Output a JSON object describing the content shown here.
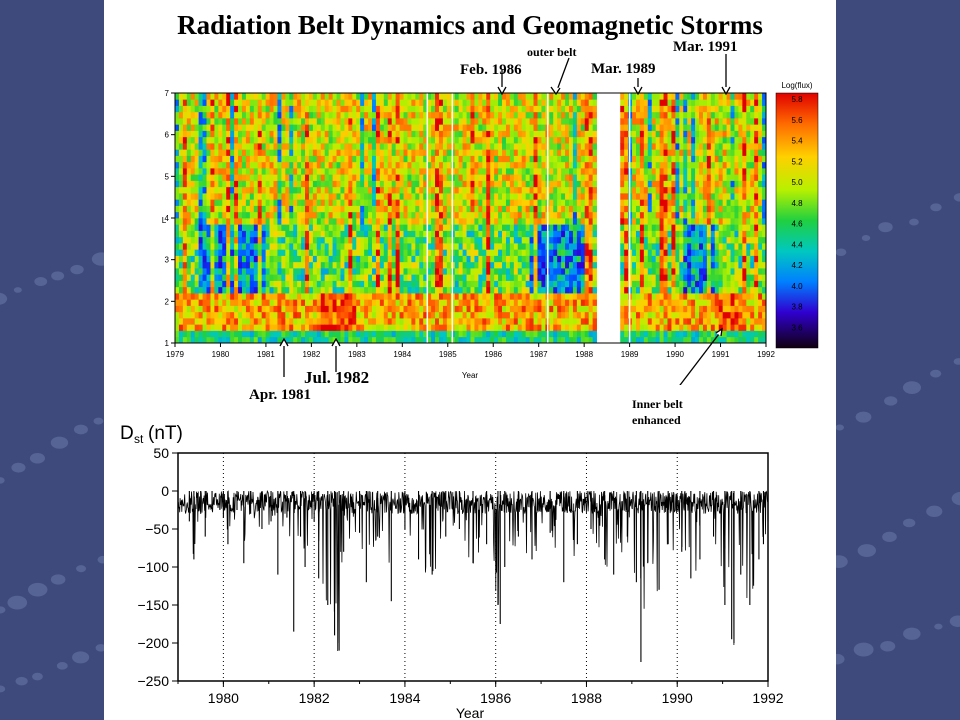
{
  "title": "Radiation Belt Dynamics and Geomagnetic Storms",
  "annotations": {
    "outer_belt": "outer belt",
    "feb_1986": "Feb. 1986",
    "mar_1989": "Mar. 1989",
    "mar_1991": "Mar. 1991",
    "apr_1981": "Apr. 1981",
    "jul_1982": "Jul. 1982",
    "inner_belt_line1": "Inner belt",
    "inner_belt_line2": "enhanced"
  },
  "colors": {
    "background": "#3f4a7c",
    "panel": "#ffffff"
  },
  "chart_data": [
    {
      "type": "heatmap",
      "title": "",
      "xlabel": "Year",
      "ylabel": "L",
      "xlim": [
        1979,
        1992
      ],
      "ylim": [
        1,
        7
      ],
      "x_ticks": [
        "1979",
        "1980",
        "1981",
        "1982",
        "1983",
        "1984",
        "1985",
        "1986",
        "1987",
        "1988",
        "1989",
        "1990",
        "1991",
        "1992"
      ],
      "y_ticks": [
        "1",
        "2",
        "3",
        "4",
        "5",
        "6",
        "7"
      ],
      "colorbar": {
        "label": "Log(flux)",
        "range": [
          3.6,
          5.8
        ],
        "ticks": [
          "5.8",
          "5.6",
          "5.4",
          "5.2",
          "5.0",
          "4.8",
          "4.6",
          "4.4",
          "4.2",
          "4.0",
          "3.8",
          "3.6"
        ]
      },
      "data_gaps": [
        [
          1988.25,
          1988.75
        ]
      ],
      "features": [
        {
          "label": "Apr. 1981",
          "x": 1981.3
        },
        {
          "label": "Jul. 1982",
          "x": 1982.55
        },
        {
          "label": "Feb. 1986",
          "x": 1986.1
        },
        {
          "label": "outer belt",
          "x": 1987.3
        },
        {
          "label": "Mar. 1989",
          "x": 1989.2
        },
        {
          "label": "Mar. 1991",
          "x": 1991.25
        },
        {
          "label": "Inner belt enhanced",
          "x": 1991.15
        }
      ]
    },
    {
      "type": "line",
      "title": "",
      "ylabel_main": "D",
      "ylabel_sub": "st",
      "ylabel_unit": "(nT)",
      "xlabel": "Year",
      "xlim": [
        1979,
        1992
      ],
      "ylim": [
        -250,
        50
      ],
      "x_ticks": [
        1980,
        1982,
        1984,
        1986,
        1988,
        1990,
        1992
      ],
      "y_ticks": [
        50,
        0,
        -50,
        -100,
        -150,
        -200,
        -250
      ],
      "x_tick_labels": [
        "1980",
        "1982",
        "1984",
        "1986",
        "1988",
        "1990",
        "1992"
      ],
      "y_tick_labels": [
        "50",
        "0",
        "−50",
        "−100",
        "−150",
        "−200",
        "−250"
      ],
      "grid_x": [
        1980,
        1982,
        1984,
        1986,
        1988,
        1990
      ],
      "series": [
        {
          "x": [
            1979.0,
            1979.25,
            1979.35,
            1979.5,
            1979.6,
            1979.75,
            1980.0,
            1980.1,
            1980.3,
            1980.45,
            1980.6,
            1980.85,
            1981.05,
            1981.2,
            1981.4,
            1981.55,
            1981.7,
            1981.8,
            1982.0,
            1982.1,
            1982.3,
            1982.45,
            1982.55,
            1982.65,
            1983.0,
            1983.15,
            1983.4,
            1983.7,
            1984.0,
            1984.3,
            1984.6,
            1984.9,
            1985.2,
            1985.5,
            1985.8,
            1986.05,
            1986.1,
            1986.2,
            1986.5,
            1986.8,
            1987.2,
            1987.5,
            1987.8,
            1988.1,
            1988.4,
            1988.6,
            1988.9,
            1989.1,
            1989.2,
            1989.35,
            1989.6,
            1989.8,
            1990.1,
            1990.3,
            1990.5,
            1990.8,
            1991.05,
            1991.2,
            1991.25,
            1991.4,
            1991.6,
            1991.8,
            1991.9,
            1992.0
          ],
          "y": [
            -12,
            -40,
            -90,
            -30,
            -60,
            -20,
            -35,
            -70,
            -25,
            -95,
            -30,
            -50,
            -40,
            -110,
            -35,
            -185,
            -60,
            -100,
            -40,
            -115,
            -150,
            -190,
            -210,
            -80,
            -55,
            -120,
            -60,
            -145,
            -50,
            -90,
            -110,
            -60,
            -50,
            -95,
            -70,
            -150,
            -175,
            -100,
            -60,
            -90,
            -55,
            -120,
            -70,
            -50,
            -90,
            -110,
            -60,
            -120,
            -225,
            -95,
            -130,
            -70,
            -80,
            -115,
            -90,
            -60,
            -150,
            -195,
            -200,
            -110,
            -150,
            -90,
            -70,
            -40
          ]
        }
      ]
    }
  ]
}
